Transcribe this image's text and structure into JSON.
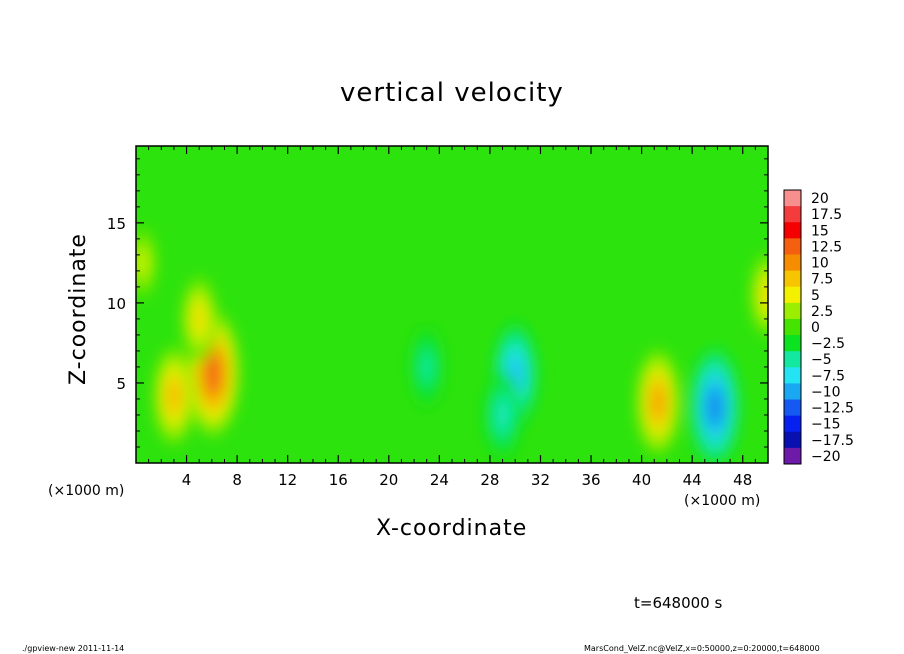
{
  "chart_data": {
    "type": "heatmap",
    "title": "vertical velocity",
    "xlabel": "X-coordinate",
    "ylabel": "Z-coordinate",
    "x_unit": "(×1000 m)",
    "xlim": [
      0,
      50
    ],
    "ylim": [
      0,
      19.8
    ],
    "x_ticks": [
      4,
      8,
      12,
      16,
      20,
      24,
      28,
      32,
      36,
      40,
      44,
      48
    ],
    "y_ticks": [
      5,
      10,
      15
    ],
    "colorbar": {
      "levels": [
        "20",
        "17.5",
        "15",
        "12.5",
        "10",
        "7.5",
        "5",
        "2.5",
        "0",
        "−2.5",
        "−5",
        "−7.5",
        "−10",
        "−12.5",
        "−15",
        "−17.5",
        "−20"
      ],
      "min": -20,
      "max": 20,
      "colors": [
        "#f78f8f",
        "#f43c3c",
        "#f40000",
        "#f46010",
        "#f68c00",
        "#f7c400",
        "#f3f000",
        "#9bee00",
        "#44e400",
        "#0be220",
        "#12e8a0",
        "#24e3f2",
        "#1aa8f2",
        "#1658f2",
        "#0620f0",
        "#0810b0",
        "#6d1aa8"
      ],
      "legend_position": "right"
    },
    "background_value": -1.0,
    "features": [
      {
        "kind": "updraft",
        "x": 6.1,
        "z": 5.6,
        "peak": 12
      },
      {
        "kind": "updraft",
        "x": 3.0,
        "z": 4.2,
        "peak": 8
      },
      {
        "kind": "updraft",
        "x": 5.0,
        "z": 9.0,
        "peak": 6
      },
      {
        "kind": "updraft",
        "x": 41.3,
        "z": 3.8,
        "peak": 9
      },
      {
        "kind": "updraft",
        "x": 50.0,
        "z": 10.5,
        "peak": 6
      },
      {
        "kind": "updraft",
        "x": 0.5,
        "z": 12.5,
        "peak": 4
      },
      {
        "kind": "downdraft",
        "x": 30.0,
        "z": 5.5,
        "peak": -9
      },
      {
        "kind": "downdraft",
        "x": 29.0,
        "z": 3.0,
        "peak": -6
      },
      {
        "kind": "downdraft",
        "x": 45.8,
        "z": 3.5,
        "peak": -11
      },
      {
        "kind": "downdraft",
        "x": 23.0,
        "z": 6.0,
        "peak": -5
      }
    ]
  },
  "time_label": "t=648000 s",
  "footer_left": "./gpview-new   2011-11-14",
  "footer_right": "MarsCond_VelZ.nc@VelZ,x=0:50000,z=0:20000,t=648000"
}
